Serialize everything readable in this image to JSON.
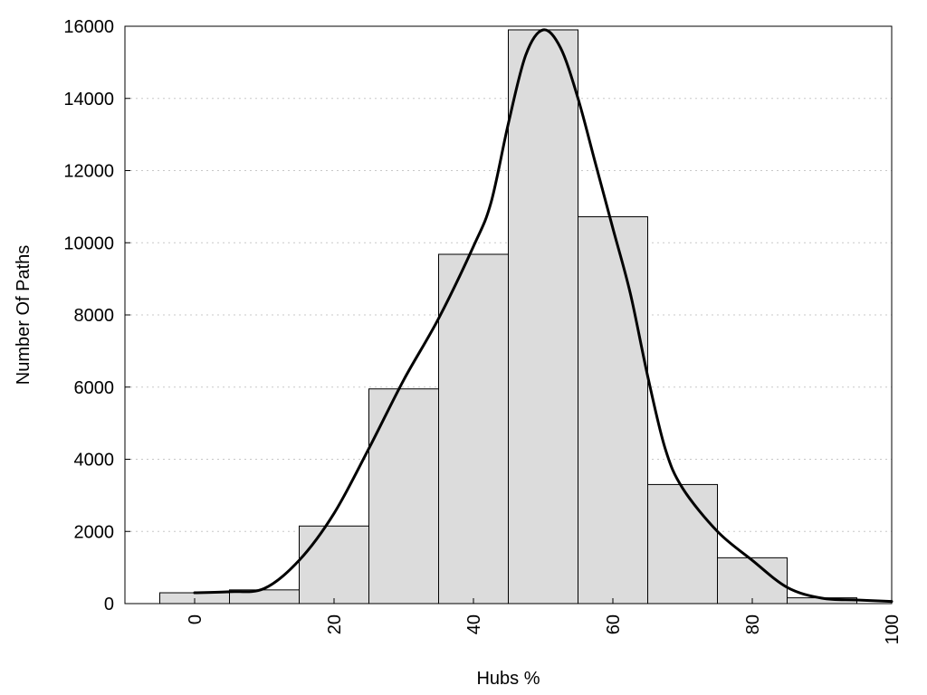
{
  "chart_data": {
    "type": "bar",
    "title": "",
    "xlabel": "Hubs %",
    "ylabel": "Number Of Paths",
    "xlim": [
      -10,
      100
    ],
    "ylim": [
      0,
      16000
    ],
    "grid": "horizontal-dotted",
    "x_ticks": [
      0,
      20,
      40,
      60,
      80,
      100
    ],
    "y_ticks": [
      0,
      2000,
      4000,
      6000,
      8000,
      10000,
      12000,
      14000,
      16000
    ],
    "bin_width": 10,
    "bins": [
      {
        "center": 0,
        "value": 300
      },
      {
        "center": 10,
        "value": 380
      },
      {
        "center": 20,
        "value": 2150
      },
      {
        "center": 30,
        "value": 5950
      },
      {
        "center": 40,
        "value": 9680
      },
      {
        "center": 50,
        "value": 15900
      },
      {
        "center": 60,
        "value": 10720
      },
      {
        "center": 70,
        "value": 3300
      },
      {
        "center": 80,
        "value": 1270
      },
      {
        "center": 90,
        "value": 160
      }
    ],
    "curve": {
      "type": "line",
      "x": [
        0,
        5,
        10,
        15,
        20,
        25,
        30,
        35,
        40,
        42.5,
        45,
        47.5,
        50,
        52.5,
        55,
        57.5,
        60,
        62.5,
        65,
        67.5,
        70,
        75,
        80,
        85,
        90,
        95,
        100
      ],
      "y": [
        300,
        330,
        420,
        1200,
        2500,
        4300,
        6200,
        7900,
        9900,
        11100,
        13300,
        15200,
        15900,
        15400,
        14000,
        12200,
        10400,
        8600,
        6300,
        4300,
        3200,
        2000,
        1200,
        450,
        150,
        100,
        60
      ]
    }
  }
}
